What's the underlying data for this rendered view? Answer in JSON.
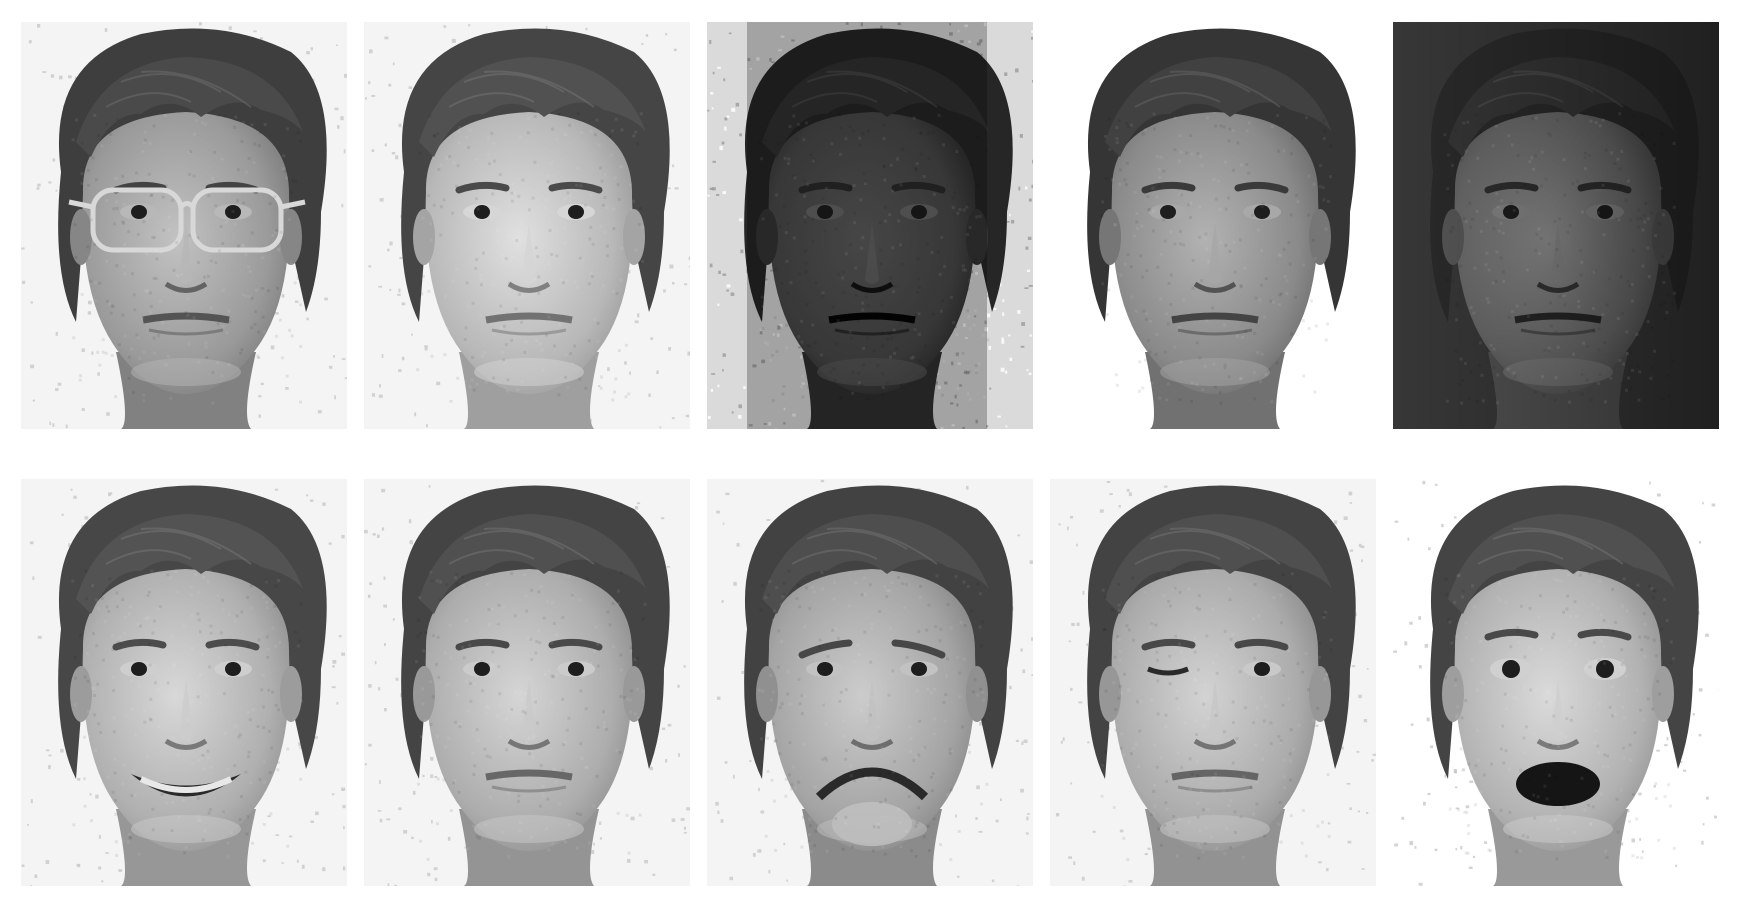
{
  "figure": {
    "rows": 2,
    "cols": 5,
    "tiles": [
      {
        "row": 0,
        "col": 0,
        "glasses": true,
        "background": "#f4f4f4",
        "bg_texture": "light",
        "face_tone": "#9a9a9a",
        "hair_tone": "#3e3e3e",
        "expression": "neutral"
      },
      {
        "row": 0,
        "col": 1,
        "glasses": false,
        "background": "#f4f4f4",
        "bg_texture": "light",
        "face_tone": "#b8b8b8",
        "hair_tone": "#454545",
        "expression": "neutral"
      },
      {
        "row": 0,
        "col": 2,
        "glasses": false,
        "background": "#dadada",
        "bg_texture": "rough",
        "face_tone": "#4a4a4a",
        "hair_tone": "#262626",
        "expression": "neutral",
        "lighting": "dark"
      },
      {
        "row": 0,
        "col": 3,
        "glasses": false,
        "background": "#ffffff",
        "bg_texture": "none",
        "face_tone": "#8a8a8a",
        "hair_tone": "#353535",
        "expression": "neutral"
      },
      {
        "row": 0,
        "col": 4,
        "glasses": false,
        "background": "#3a3a3a",
        "bg_texture": "none",
        "face_tone": "#6e6e6e",
        "hair_tone": "#2c2c2c",
        "expression": "neutral",
        "lighting": "side"
      },
      {
        "row": 1,
        "col": 0,
        "glasses": false,
        "background": "#f4f4f4",
        "bg_texture": "light",
        "face_tone": "#b0b0b0",
        "hair_tone": "#474747",
        "expression": "happy"
      },
      {
        "row": 1,
        "col": 1,
        "glasses": false,
        "background": "#f4f4f4",
        "bg_texture": "light",
        "face_tone": "#adadad",
        "hair_tone": "#444444",
        "expression": "neutral"
      },
      {
        "row": 1,
        "col": 2,
        "glasses": false,
        "background": "#f4f4f4",
        "bg_texture": "light",
        "face_tone": "#a4a4a4",
        "hair_tone": "#424242",
        "expression": "sad"
      },
      {
        "row": 1,
        "col": 3,
        "glasses": false,
        "background": "#f4f4f4",
        "bg_texture": "light",
        "face_tone": "#ababab",
        "hair_tone": "#434343",
        "expression": "wink"
      },
      {
        "row": 1,
        "col": 4,
        "glasses": false,
        "background": "#ffffff",
        "bg_texture": "light",
        "face_tone": "#b2b2b2",
        "hair_tone": "#444444",
        "expression": "surprised"
      }
    ]
  }
}
